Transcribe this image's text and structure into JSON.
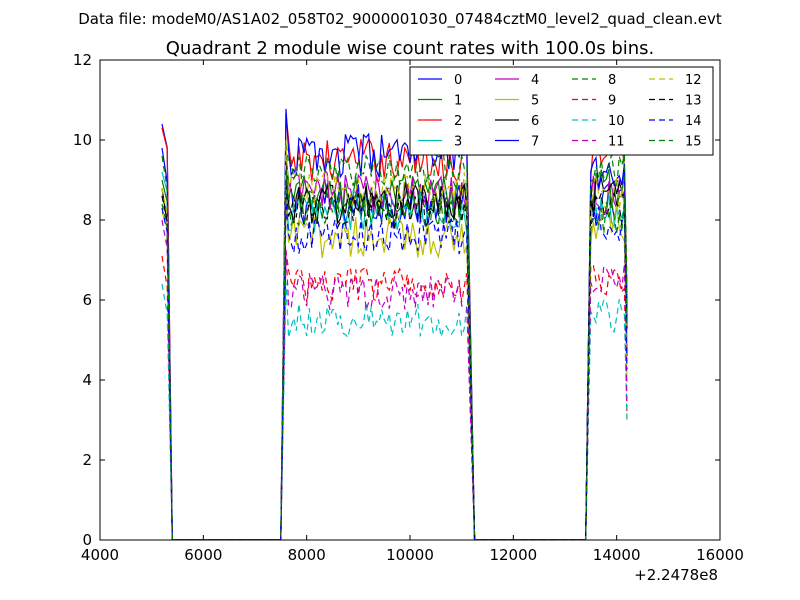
{
  "figure": {
    "suptitle": "Data file: modeM0/AS1A02_058T02_9000001030_07484cztM0_level2_quad_clean.evt"
  },
  "chart_data": {
    "type": "line",
    "title": "Quadrant 2 module wise count rates with 100.0s bins.",
    "xlabel": "",
    "ylabel": "",
    "xlim": [
      4000,
      16000
    ],
    "ylim": [
      0,
      12
    ],
    "x_offset_label": "+2.2478e8",
    "xticks": [
      4000,
      6000,
      8000,
      10000,
      12000,
      14000,
      16000
    ],
    "yticks": [
      0,
      2,
      4,
      6,
      8,
      10,
      12
    ],
    "grid": false,
    "legend_position": "top-right",
    "legend_columns": 4,
    "segments": [
      {
        "start": 5200,
        "end": 5300
      },
      {
        "start": 7500,
        "end": 11100
      },
      {
        "start": 13400,
        "end": 14200
      }
    ],
    "series": [
      {
        "name": "0",
        "color": "#0000ff",
        "dash": "solid",
        "levels": [
          10.4,
          8.4,
          8.4
        ]
      },
      {
        "name": "1",
        "color": "#008000",
        "dash": "solid",
        "levels": [
          9.0,
          8.6,
          8.8
        ]
      },
      {
        "name": "2",
        "color": "#ff0000",
        "dash": "solid",
        "levels": [
          10.3,
          9.5,
          9.6
        ]
      },
      {
        "name": "3",
        "color": "#00bfbf",
        "dash": "solid",
        "levels": [
          9.2,
          8.2,
          8.3
        ]
      },
      {
        "name": "4",
        "color": "#bf00bf",
        "dash": "solid",
        "levels": [
          8.6,
          8.7,
          8.6
        ]
      },
      {
        "name": "5",
        "color": "#bfbf00",
        "dash": "solid",
        "levels": [
          8.2,
          7.6,
          7.9
        ]
      },
      {
        "name": "6",
        "color": "#000000",
        "dash": "solid",
        "levels": [
          8.8,
          8.4,
          8.5
        ]
      },
      {
        "name": "7",
        "color": "#0000ff",
        "dash": "solid",
        "levels": [
          9.8,
          9.6,
          9.2
        ]
      },
      {
        "name": "8",
        "color": "#008000",
        "dash": "dashed",
        "levels": [
          9.6,
          9.2,
          9.2
        ]
      },
      {
        "name": "9",
        "color": "#ff0000",
        "dash": "dashed",
        "levels": [
          7.1,
          6.4,
          6.5
        ]
      },
      {
        "name": "10",
        "color": "#00bfbf",
        "dash": "dashed",
        "levels": [
          6.4,
          5.5,
          5.6
        ]
      },
      {
        "name": "11",
        "color": "#bf00bf",
        "dash": "dashed",
        "levels": [
          8.0,
          6.2,
          6.6
        ]
      },
      {
        "name": "12",
        "color": "#bfbf00",
        "dash": "dashed",
        "levels": [
          8.8,
          8.8,
          8.7
        ]
      },
      {
        "name": "13",
        "color": "#000000",
        "dash": "dashed",
        "levels": [
          8.6,
          8.2,
          8.3
        ]
      },
      {
        "name": "14",
        "color": "#0000ff",
        "dash": "dashed",
        "levels": [
          8.3,
          7.6,
          7.9
        ]
      },
      {
        "name": "15",
        "color": "#008000",
        "dash": "dashed",
        "levels": [
          8.4,
          8.3,
          8.1
        ]
      }
    ]
  }
}
